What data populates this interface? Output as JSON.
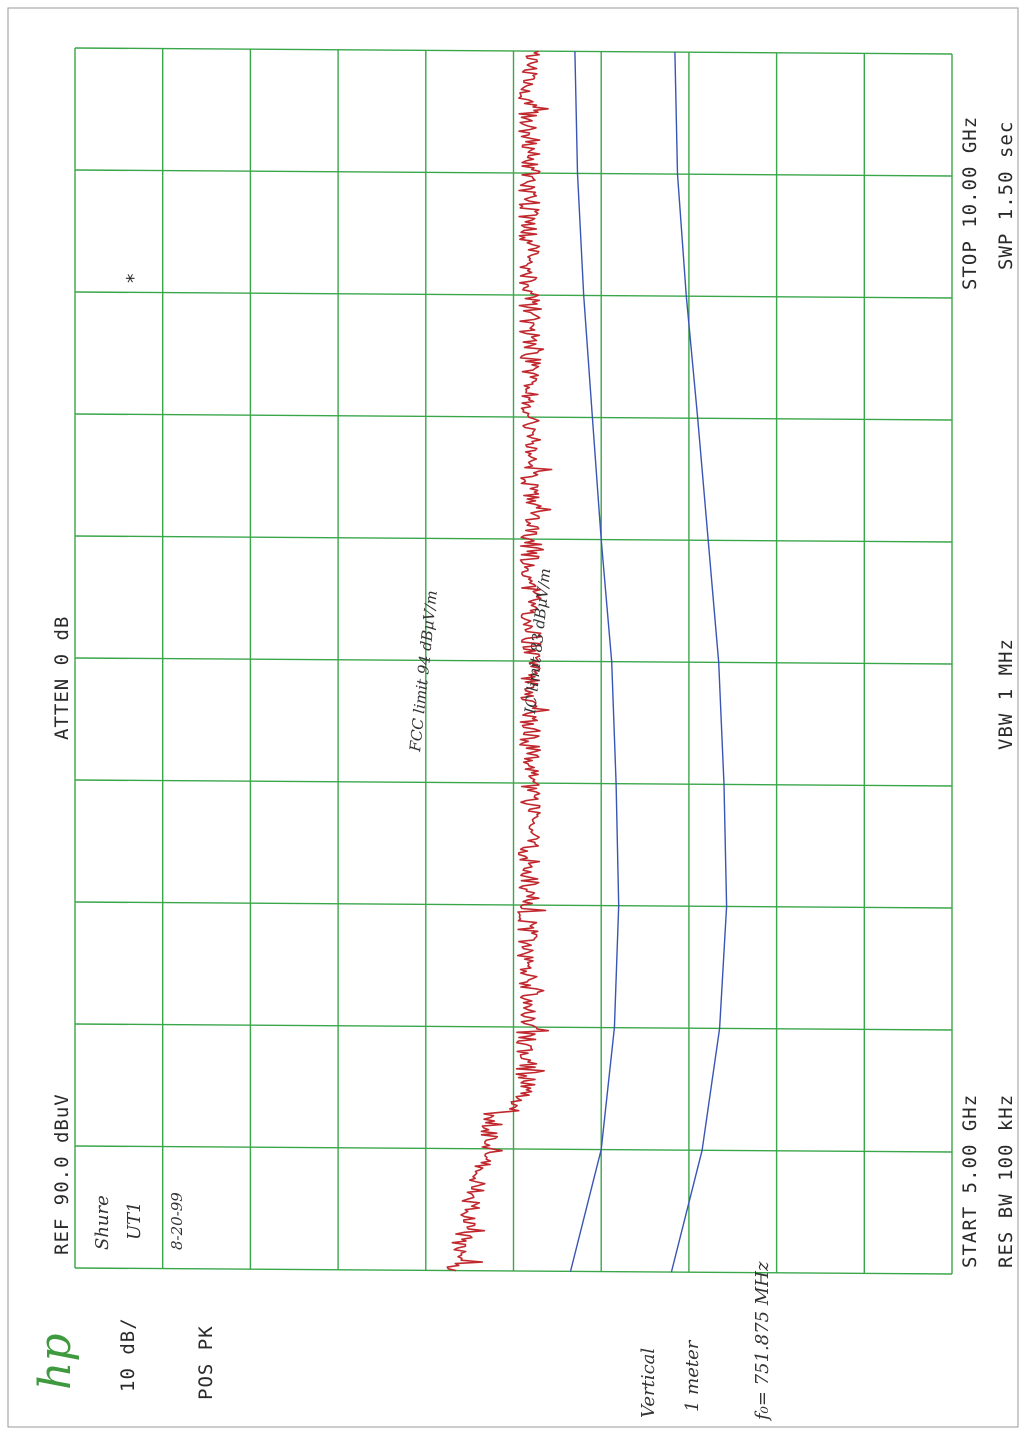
{
  "header": {
    "logo": "hp",
    "ref": "REF  90.0 dBuV",
    "atten": "ATTEN 0 dB",
    "scale": "10 dB/",
    "detector": "POS PK",
    "start": "START 5.00 GHz",
    "stop": "STOP 10.00 GHz",
    "rbw": "RES BW 100 kHz",
    "vbw": "VBW 1 MHz",
    "sweep": "SWP 1.50  sec",
    "marker_star": "*"
  },
  "handwritten": {
    "device": "Shure",
    "model": "UT1",
    "date": "8-20-99",
    "polarization": "Vertical",
    "distance": "1 meter",
    "fo": "f₀= 751.875 MHz",
    "fcc_label": "FCC  limit  94 dBμV/m",
    "ic_label": "IC  limit  83 dBμV/m"
  },
  "colors": {
    "grid": "#3aa64a",
    "limit": "#3a55b4",
    "trace": "#c0282e",
    "frame": "#555555"
  },
  "chart_data": {
    "type": "line",
    "x_unit": "GHz",
    "y_unit": "dBuV",
    "xlim": [
      5.0,
      10.0
    ],
    "ylim": [
      -10,
      90
    ],
    "x_divisions": 10,
    "y_divisions": 10,
    "grid": true,
    "series": [
      {
        "name": "FCC  limit  94 dBμV/m",
        "color": "#3a55b4",
        "x": [
          5.0,
          5.5,
          6.0,
          6.5,
          7.0,
          7.5,
          8.0,
          8.5,
          9.0,
          9.5,
          10.0
        ],
        "y": [
          58.0,
          61.5,
          63.5,
          64.3,
          64.0,
          63.4,
          62.2,
          61.0,
          59.7,
          58.7,
          58.4
        ]
      },
      {
        "name": "IC  limit  83 dBμV/m",
        "color": "#3a55b4",
        "x": [
          5.0,
          5.5,
          6.0,
          6.5,
          7.0,
          7.5,
          8.0,
          8.5,
          9.0,
          9.5,
          10.0
        ],
        "y": [
          46.5,
          50.0,
          51.5,
          52.0,
          51.7,
          51.2,
          50.0,
          49.0,
          48.0,
          47.3,
          47.0
        ]
      },
      {
        "name": "",
        "color": "#c0282e",
        "noise": true,
        "x": [
          5.0,
          5.1,
          5.25,
          5.4,
          5.5,
          5.6,
          5.65,
          5.7,
          6.0,
          6.5,
          7.0,
          7.5,
          8.0,
          8.5,
          9.0,
          9.5,
          10.0
        ],
        "y": [
          33.0,
          34.0,
          35.0,
          36.0,
          37.0,
          37.5,
          37.5,
          41.5,
          41.5,
          41.7,
          41.9,
          42.0,
          42.0,
          42.0,
          41.8,
          41.8,
          41.8
        ]
      }
    ]
  }
}
